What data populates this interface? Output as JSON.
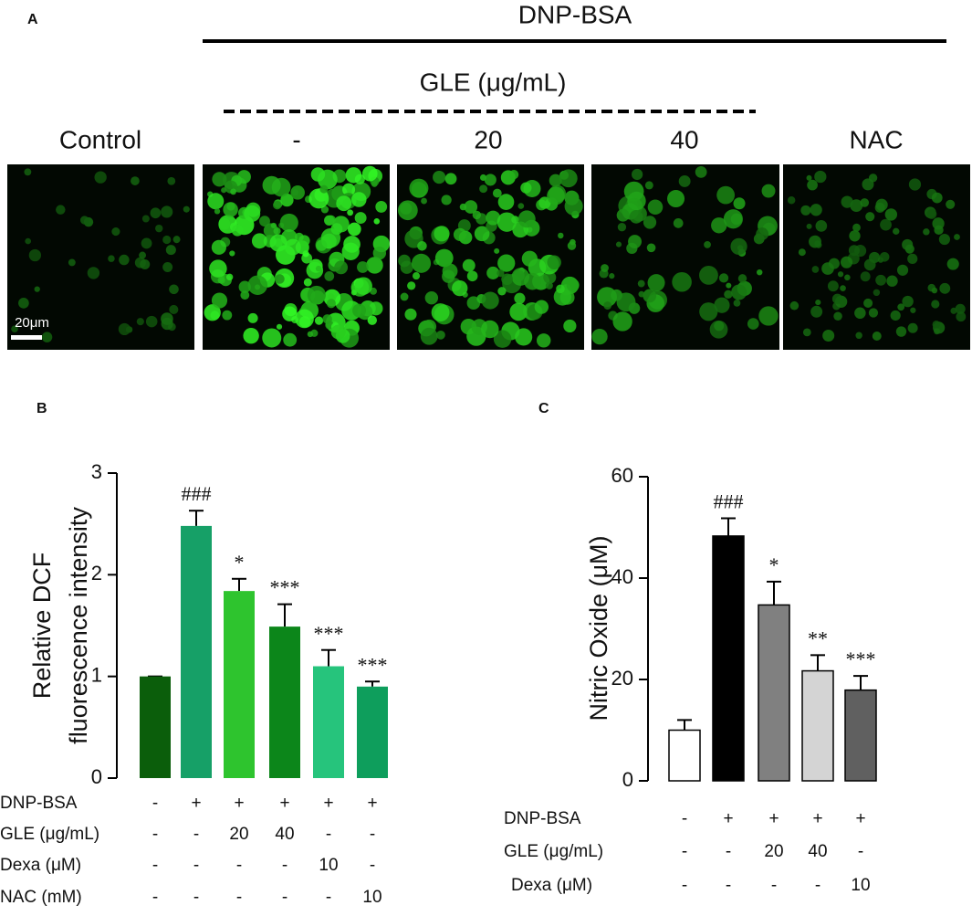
{
  "panel_a": {
    "label": "A",
    "treatment": "DNP-BSA",
    "dose_header": "GLE (μg/mL)",
    "columns": [
      "Control",
      "-",
      "20",
      "40",
      "NAC"
    ],
    "scale_bar": "20μm"
  },
  "chart_data": [
    {
      "type": "bar",
      "label": "B",
      "y_label": [
        "Relative DCF",
        "fluorescence intensity"
      ],
      "values": [
        1.0,
        2.48,
        1.84,
        1.49,
        1.1,
        0.9
      ],
      "errors": [
        0,
        0.15,
        0.12,
        0.22,
        0.16,
        0.05
      ],
      "colors": [
        "#0b5e0b",
        "#16a067",
        "#2ec42e",
        "#0c861a",
        "#26c47c",
        "#0e9e5c"
      ],
      "annotations": [
        null,
        "###",
        "*",
        "***",
        "***",
        "***"
      ],
      "ylim": [
        0,
        3
      ],
      "yticks": [
        0,
        1,
        2,
        3
      ],
      "conditions": [
        {
          "label": "DNP-BSA",
          "values": [
            "-",
            "+",
            "+",
            "+",
            "+",
            "+"
          ]
        },
        {
          "label": "GLE (μg/mL)",
          "values": [
            "-",
            "-",
            "20",
            "40",
            "-",
            "-"
          ]
        },
        {
          "label": "Dexa (μM)",
          "values": [
            "-",
            "-",
            "-",
            "-",
            "10",
            "-"
          ]
        },
        {
          "label": "NAC (mM)",
          "values": [
            "-",
            "-",
            "-",
            "-",
            "-",
            "10"
          ]
        }
      ]
    },
    {
      "type": "bar",
      "label": "C",
      "y_label": [
        "Nitric Oxide (μM)"
      ],
      "values": [
        10,
        48.3,
        34.7,
        21.7,
        17.9
      ],
      "errors": [
        2,
        3.5,
        4.6,
        3.1,
        2.8
      ],
      "colors": [
        "#ffffff",
        "#000000",
        "#808080",
        "#d4d4d4",
        "#606060"
      ],
      "edgecolor": "#000000",
      "annotations": [
        null,
        "###",
        "*",
        "**",
        "***"
      ],
      "ylim": [
        0,
        60
      ],
      "yticks": [
        0,
        20,
        40,
        60
      ],
      "conditions": [
        {
          "label": "DNP-BSA",
          "values": [
            "-",
            "+",
            "+",
            "+",
            "+"
          ]
        },
        {
          "label": "GLE (μg/mL)",
          "values": [
            "-",
            "-",
            "20",
            "40",
            "-"
          ]
        },
        {
          "label": "Dexa (μM)",
          "values": [
            "-",
            "-",
            "-",
            "-",
            "10"
          ]
        }
      ]
    }
  ]
}
